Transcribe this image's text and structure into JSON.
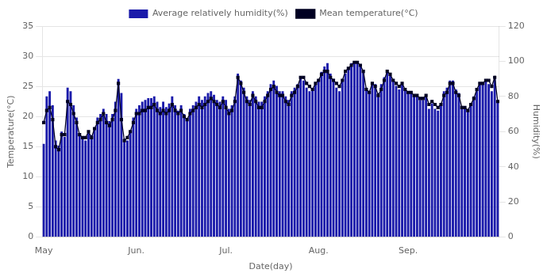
{
  "chart_data": {
    "type": "bar",
    "xlabel": "Date(day)",
    "ylabel": "Temperature(°C)",
    "y2label": "Humidity(%)",
    "legend": "top",
    "grid": true,
    "ylim": [
      0,
      35
    ],
    "yticks": [
      0,
      5,
      10,
      15,
      20,
      25,
      30,
      35
    ],
    "y2lim": [
      0,
      120
    ],
    "y2ticks": [
      0,
      20,
      40,
      60,
      80,
      100,
      120
    ],
    "categories": [
      "May",
      null,
      null,
      null,
      null,
      null,
      null,
      null,
      null,
      null,
      null,
      null,
      null,
      null,
      null,
      null,
      null,
      null,
      null,
      null,
      null,
      null,
      null,
      null,
      null,
      null,
      null,
      null,
      null,
      null,
      null,
      "Jun.",
      null,
      null,
      null,
      null,
      null,
      null,
      null,
      null,
      null,
      null,
      null,
      null,
      null,
      null,
      null,
      null,
      null,
      null,
      null,
      null,
      null,
      null,
      null,
      null,
      null,
      null,
      null,
      null,
      null,
      "Jul.",
      null,
      null,
      null,
      null,
      null,
      null,
      null,
      null,
      null,
      null,
      null,
      null,
      null,
      null,
      null,
      null,
      null,
      null,
      null,
      null,
      null,
      null,
      null,
      null,
      null,
      null,
      null,
      null,
      null,
      null,
      "Aug.",
      null,
      null,
      null,
      null,
      null,
      null,
      null,
      null,
      null,
      null,
      null,
      null,
      null,
      null,
      null,
      null,
      null,
      null,
      null,
      null,
      null,
      null,
      null,
      null,
      null,
      null,
      null,
      null,
      null,
      "Sep.",
      null,
      null,
      null,
      null,
      null,
      null,
      null,
      null,
      null,
      null,
      null,
      null,
      null,
      null,
      null,
      null,
      null,
      null,
      null,
      null,
      null,
      null,
      null,
      null,
      null,
      null,
      null,
      null,
      null,
      null
    ],
    "series": [
      {
        "name": "Average relatively humidity(%)",
        "type": "bar",
        "axis": "y2",
        "color": "#1a1aaa",
        "values": [
          53,
          80,
          83,
          75,
          55,
          52,
          60,
          57,
          85,
          83,
          75,
          68,
          58,
          57,
          55,
          60,
          58,
          62,
          68,
          70,
          73,
          70,
          66,
          70,
          77,
          90,
          82,
          56,
          55,
          60,
          68,
          73,
          75,
          77,
          78,
          79,
          79,
          80,
          77,
          74,
          77,
          74,
          76,
          80,
          75,
          72,
          75,
          70,
          67,
          73,
          75,
          77,
          80,
          78,
          80,
          82,
          83,
          81,
          78,
          77,
          80,
          78,
          73,
          75,
          80,
          93,
          89,
          85,
          80,
          78,
          83,
          80,
          77,
          77,
          80,
          83,
          87,
          89,
          86,
          83,
          83,
          80,
          78,
          83,
          85,
          87,
          91,
          89,
          85,
          83,
          84,
          87,
          89,
          94,
          97,
          99,
          93,
          90,
          85,
          83,
          89,
          93,
          96,
          99,
          100,
          99,
          98,
          95,
          85,
          82,
          88,
          87,
          82,
          87,
          91,
          94,
          92,
          89,
          86,
          84,
          88,
          84,
          82,
          82,
          80,
          80,
          78,
          78,
          80,
          73,
          76,
          73,
          72,
          76,
          83,
          85,
          89,
          89,
          84,
          82,
          73,
          73,
          72,
          76,
          80,
          84,
          87,
          87,
          89,
          87,
          83,
          90,
          77
        ]
      },
      {
        "name": "Mean temperature(°C)",
        "type": "line",
        "color": "#000022",
        "marker": "square",
        "values": [
          19.0,
          21.0,
          21.5,
          19.5,
          15.0,
          14.5,
          17.0,
          17.0,
          22.5,
          22.0,
          20.5,
          19.0,
          17.0,
          16.5,
          16.5,
          17.5,
          16.5,
          18.0,
          19.0,
          19.5,
          20.5,
          19.0,
          18.5,
          19.5,
          21.0,
          25.5,
          19.5,
          16.0,
          16.5,
          17.5,
          19.0,
          20.5,
          20.5,
          21.0,
          21.0,
          21.5,
          21.5,
          22.0,
          21.0,
          20.5,
          21.0,
          20.5,
          21.0,
          22.0,
          21.0,
          20.5,
          21.0,
          20.0,
          19.5,
          20.5,
          21.0,
          21.5,
          22.0,
          21.5,
          22.0,
          22.5,
          23.0,
          22.5,
          22.0,
          21.5,
          22.5,
          21.5,
          20.5,
          21.0,
          22.5,
          26.5,
          25.5,
          24.0,
          22.5,
          22.0,
          23.5,
          22.5,
          21.5,
          21.5,
          22.5,
          23.5,
          24.5,
          25.0,
          24.0,
          23.5,
          23.5,
          22.5,
          22.0,
          23.5,
          24.0,
          25.0,
          26.5,
          26.5,
          25.5,
          25.0,
          24.5,
          25.5,
          26.0,
          27.0,
          27.5,
          27.5,
          26.5,
          26.0,
          25.5,
          25.0,
          26.0,
          27.5,
          28.0,
          28.5,
          29.0,
          29.0,
          28.5,
          27.5,
          24.5,
          24.0,
          25.5,
          25.0,
          23.5,
          24.5,
          26.0,
          27.5,
          27.0,
          26.0,
          25.5,
          25.0,
          25.5,
          24.5,
          24.0,
          24.0,
          23.5,
          23.5,
          23.0,
          23.0,
          23.5,
          22.0,
          22.5,
          22.0,
          21.5,
          22.0,
          23.5,
          24.0,
          25.5,
          25.5,
          24.0,
          23.5,
          21.5,
          21.5,
          21.0,
          22.0,
          23.0,
          24.5,
          25.5,
          25.5,
          26.0,
          26.0,
          25.0,
          26.5,
          22.5
        ]
      }
    ]
  }
}
